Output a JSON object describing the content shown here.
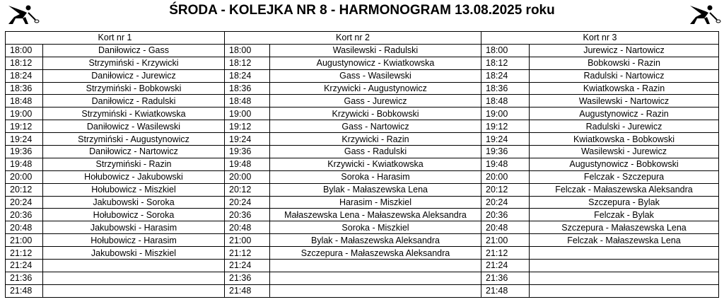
{
  "title": "ŚRODA - KOLEJKA NR 8 - HARMONOGRAM 13.08.2025 roku",
  "icons": {
    "left": "badminton-player-icon",
    "right": "badminton-player-icon"
  },
  "courts": [
    {
      "name": "Kort nr 1",
      "rows": [
        {
          "time": "18:00",
          "match": "Daniłowicz - Gass"
        },
        {
          "time": "18:12",
          "match": "Strzymiński - Krzywicki"
        },
        {
          "time": "18:24",
          "match": "Daniłowicz - Jurewicz"
        },
        {
          "time": "18:36",
          "match": "Strzymiński - Bobkowski"
        },
        {
          "time": "18:48",
          "match": "Daniłowicz - Radulski"
        },
        {
          "time": "19:00",
          "match": "Strzymiński - Kwiatkowska"
        },
        {
          "time": "19:12",
          "match": "Daniłowicz - Wasilewski"
        },
        {
          "time": "19:24",
          "match": "Strzymiński - Augustynowicz"
        },
        {
          "time": "19:36",
          "match": "Daniłowicz - Nartowicz"
        },
        {
          "time": "19:48",
          "match": "Strzymiński - Razin"
        },
        {
          "time": "20:00",
          "match": "Hołubowicz - Jakubowski"
        },
        {
          "time": "20:12",
          "match": "Hołubowicz - Miszkiel"
        },
        {
          "time": "20:24",
          "match": "Jakubowski - Soroka"
        },
        {
          "time": "20:36",
          "match": "Hołubowicz - Soroka"
        },
        {
          "time": "20:48",
          "match": "Jakubowski - Harasim"
        },
        {
          "time": "21:00",
          "match": "Hołubowicz - Harasim"
        },
        {
          "time": "21:12",
          "match": "Jakubowski - Miszkiel"
        },
        {
          "time": "21:24",
          "match": ""
        },
        {
          "time": "21:36",
          "match": ""
        },
        {
          "time": "21:48",
          "match": ""
        }
      ]
    },
    {
      "name": "Kort nr 2",
      "rows": [
        {
          "time": "18:00",
          "match": "Wasilewski - Radulski"
        },
        {
          "time": "18:12",
          "match": "Augustynowicz - Kwiatkowska"
        },
        {
          "time": "18:24",
          "match": "Gass - Wasilewski"
        },
        {
          "time": "18:36",
          "match": "Krzywicki - Augustynowicz"
        },
        {
          "time": "18:48",
          "match": "Gass - Jurewicz"
        },
        {
          "time": "19:00",
          "match": "Krzywicki - Bobkowski"
        },
        {
          "time": "19:12",
          "match": "Gass - Nartowicz"
        },
        {
          "time": "19:24",
          "match": "Krzywicki - Razin"
        },
        {
          "time": "19:36",
          "match": "Gass - Radulski"
        },
        {
          "time": "19:48",
          "match": "Krzywicki - Kwiatkowska"
        },
        {
          "time": "20:00",
          "match": "Soroka - Harasim"
        },
        {
          "time": "20:12",
          "match": "Bylak - Małaszewska Lena"
        },
        {
          "time": "20:24",
          "match": "Harasim - Miszkiel"
        },
        {
          "time": "20:36",
          "match": "Małaszewska Lena - Małaszewska Aleksandra"
        },
        {
          "time": "20:48",
          "match": "Soroka - Miszkiel"
        },
        {
          "time": "21:00",
          "match": "Bylak - Małaszewska Aleksandra"
        },
        {
          "time": "21:12",
          "match": "Szczepura - Małaszewska Aleksandra"
        },
        {
          "time": "21:24",
          "match": ""
        },
        {
          "time": "21:36",
          "match": ""
        },
        {
          "time": "21:48",
          "match": ""
        }
      ]
    },
    {
      "name": "Kort nr 3",
      "rows": [
        {
          "time": "18:00",
          "match": "Jurewicz - Nartowicz"
        },
        {
          "time": "18:12",
          "match": "Bobkowski - Razin"
        },
        {
          "time": "18:24",
          "match": "Radulski - Nartowicz"
        },
        {
          "time": "18:36",
          "match": "Kwiatkowska - Razin"
        },
        {
          "time": "18:48",
          "match": "Wasilewski - Nartowicz"
        },
        {
          "time": "19:00",
          "match": "Augustynowicz - Razin"
        },
        {
          "time": "19:12",
          "match": "Radulski - Jurewicz"
        },
        {
          "time": "19:24",
          "match": "Kwiatkowska - Bobkowski"
        },
        {
          "time": "19:36",
          "match": "Wasilewski - Jurewicz"
        },
        {
          "time": "19:48",
          "match": "Augustynowicz - Bobkowski"
        },
        {
          "time": "20:00",
          "match": "Felczak - Szczepura"
        },
        {
          "time": "20:12",
          "match": "Felczak - Małaszewska Aleksandra"
        },
        {
          "time": "20:24",
          "match": "Szczepura - Bylak"
        },
        {
          "time": "20:36",
          "match": "Felczak - Bylak"
        },
        {
          "time": "20:48",
          "match": "Szczepura - Małaszewska Lena"
        },
        {
          "time": "21:00",
          "match": "Felczak - Małaszewska Lena"
        },
        {
          "time": "21:12",
          "match": ""
        },
        {
          "time": "21:24",
          "match": ""
        },
        {
          "time": "21:36",
          "match": ""
        },
        {
          "time": "21:48",
          "match": ""
        }
      ]
    }
  ]
}
